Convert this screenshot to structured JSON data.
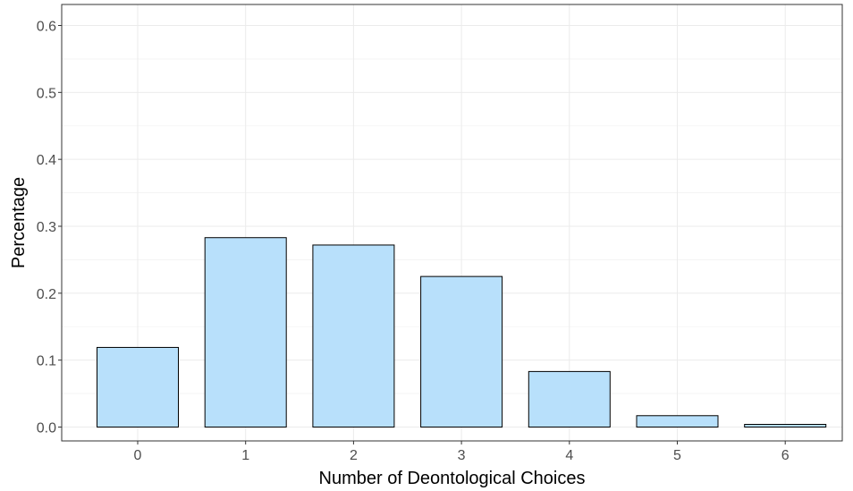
{
  "chart_data": {
    "type": "bar",
    "title": "",
    "xlabel": "Number of Deontological Choices",
    "ylabel": "Percentage",
    "categories": [
      "0",
      "1",
      "2",
      "3",
      "4",
      "5",
      "6"
    ],
    "values": [
      0.119,
      0.283,
      0.272,
      0.225,
      0.083,
      0.017,
      0.004
    ],
    "ylim": [
      0,
      0.6
    ],
    "yticks": [
      "0.0",
      "0.1",
      "0.2",
      "0.3",
      "0.4",
      "0.5",
      "0.6"
    ],
    "grid": true,
    "legend": "none",
    "colors": {
      "bar_fill": "#b8e0fb",
      "bar_stroke": "#000000",
      "grid": "#ebebeb"
    }
  }
}
